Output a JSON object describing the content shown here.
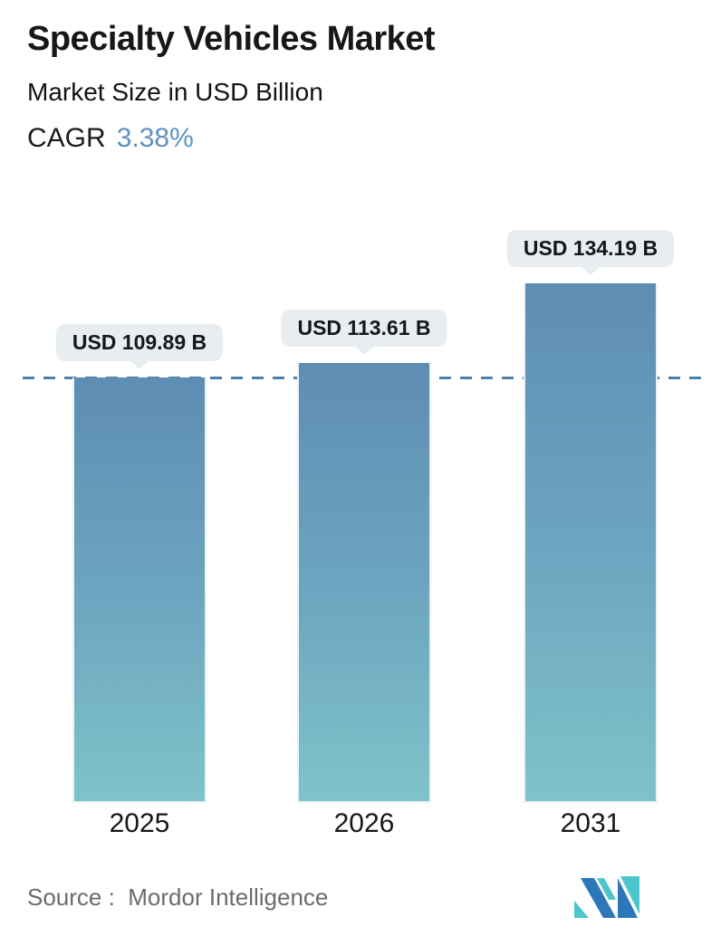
{
  "header": {
    "title": "Specialty Vehicles Market",
    "subtitle": "Market Size in USD Billion",
    "cagr_label": "CAGR",
    "cagr_value": "3.38%"
  },
  "chart_data": {
    "type": "bar",
    "title": "Specialty Vehicles Market",
    "unit": "USD Billion",
    "categories": [
      "2025",
      "2026",
      "2031"
    ],
    "values": [
      109.89,
      113.61,
      134.19
    ],
    "value_labels": [
      "USD 109.89 B",
      "USD 113.61 B",
      "USD 134.19 B"
    ],
    "baseline_value": 109.89,
    "baseline_style": "dashed",
    "ylim": [
      0,
      140
    ],
    "grid": false,
    "legend": false
  },
  "footer": {
    "source": "Source :  Mordor Intelligence"
  },
  "colors": {
    "bar_gradient_top": "#5e8db3",
    "bar_gradient_bottom": "#7fc3c9",
    "baseline_dash": "#4c80a8",
    "tooltip_bg": "#e8edef",
    "cagr_value": "#5d92c1",
    "source_text": "#6b6b6b",
    "logo_teal": "#4cc5cc",
    "logo_blue": "#2c77b8"
  }
}
